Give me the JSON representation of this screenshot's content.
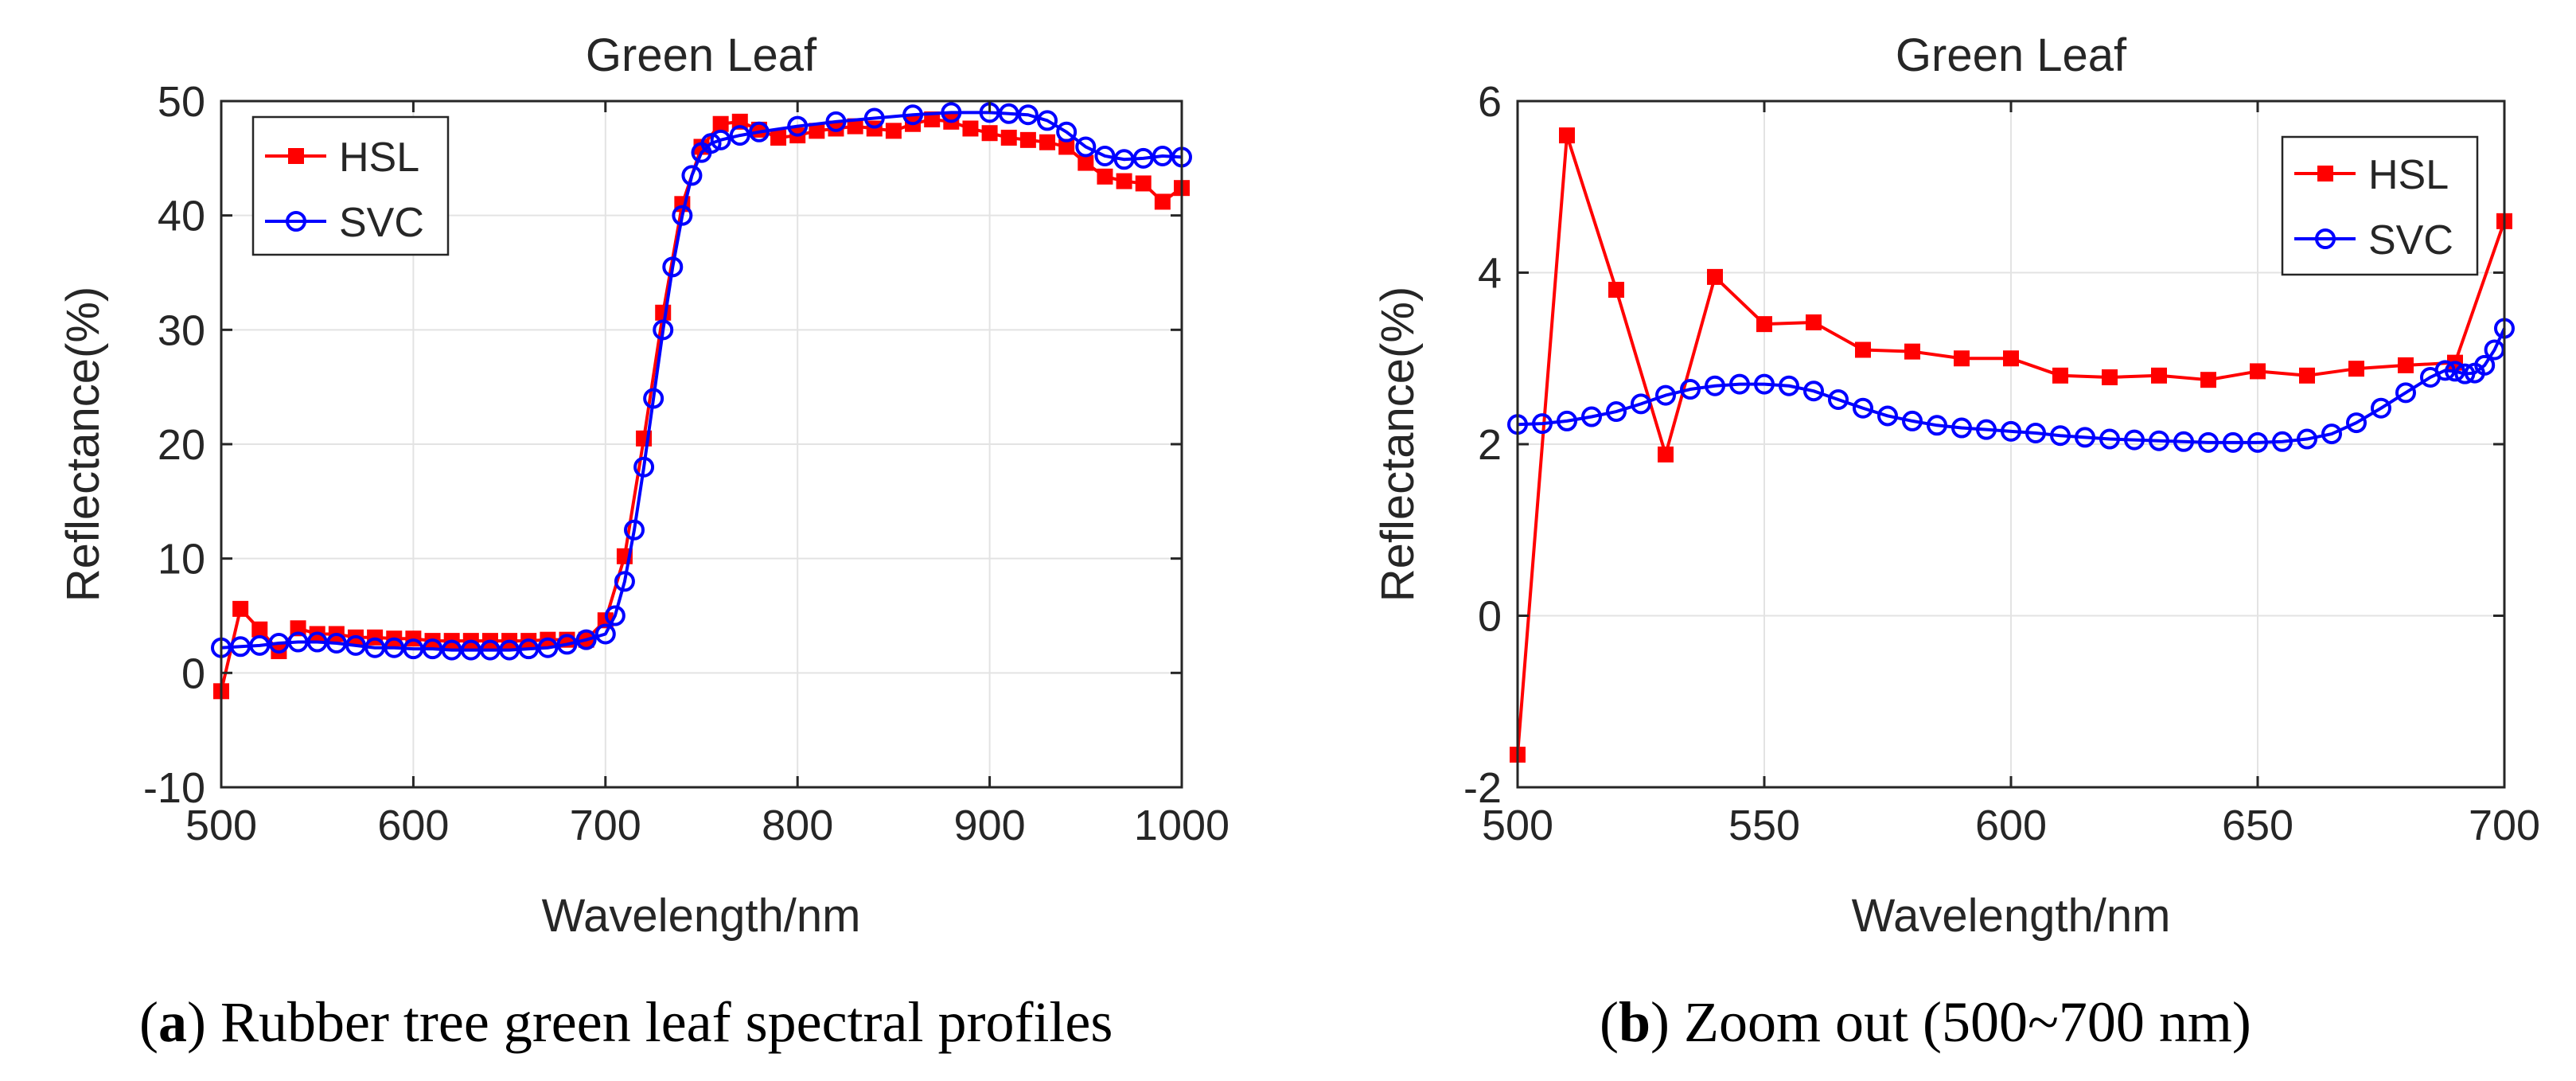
{
  "figure": {
    "caption_a": {
      "label": "a",
      "text": ") Rubber tree green leaf spectral profiles"
    },
    "caption_b": {
      "label": "b",
      "text": ") Zoom out (500~700 nm)"
    }
  },
  "colors": {
    "hsl": "#ff0000",
    "svc": "#0000ff",
    "grid": "#e3e3e3",
    "axis": "#262626"
  },
  "chart_data": [
    {
      "type": "line",
      "title": "Green Leaf",
      "xlabel": "Wavelength/nm",
      "ylabel": "Reflectance(%)",
      "xlim": [
        500,
        1000
      ],
      "ylim": [
        -10,
        50
      ],
      "xticks": [
        500,
        600,
        700,
        800,
        900,
        1000
      ],
      "yticks": [
        -10,
        0,
        10,
        20,
        30,
        40,
        50
      ],
      "grid": true,
      "legend": {
        "position": "top-left",
        "entries": [
          "HSL",
          "SVC"
        ]
      },
      "series": [
        {
          "name": "HSL",
          "marker": "square",
          "x": [
            500,
            510,
            520,
            530,
            540,
            550,
            560,
            570,
            580,
            590,
            600,
            610,
            620,
            630,
            640,
            650,
            660,
            670,
            680,
            690,
            700,
            710,
            720,
            730,
            740,
            750,
            760,
            770,
            780,
            790,
            800,
            810,
            820,
            830,
            840,
            850,
            860,
            870,
            880,
            890,
            900,
            910,
            920,
            930,
            940,
            950,
            960,
            970,
            980,
            990,
            1000
          ],
          "y": [
            -1.6,
            5.6,
            3.8,
            1.9,
            3.9,
            3.4,
            3.4,
            3.1,
            3.1,
            3.0,
            3.0,
            2.8,
            2.8,
            2.8,
            2.8,
            2.8,
            2.8,
            2.9,
            2.9,
            2.9,
            4.6,
            10.2,
            20.5,
            31.5,
            41.0,
            46.0,
            48.0,
            48.2,
            47.5,
            46.8,
            47.0,
            47.4,
            47.6,
            47.8,
            47.6,
            47.4,
            48.0,
            48.4,
            48.2,
            47.6,
            47.2,
            46.8,
            46.6,
            46.4,
            46.0,
            44.6,
            43.4,
            43.0,
            42.8,
            41.2,
            42.4
          ]
        },
        {
          "name": "SVC",
          "marker": "circle",
          "x": [
            500,
            510,
            520,
            530,
            540,
            550,
            560,
            570,
            580,
            590,
            600,
            610,
            620,
            630,
            640,
            650,
            660,
            670,
            680,
            690,
            700,
            705,
            710,
            715,
            720,
            725,
            730,
            735,
            740,
            745,
            750,
            755,
            760,
            770,
            780,
            800,
            820,
            840,
            860,
            880,
            900,
            910,
            920,
            930,
            940,
            950,
            960,
            970,
            980,
            990,
            1000
          ],
          "y": [
            2.2,
            2.3,
            2.4,
            2.6,
            2.7,
            2.7,
            2.6,
            2.4,
            2.2,
            2.2,
            2.1,
            2.1,
            2.0,
            2.0,
            2.0,
            2.0,
            2.1,
            2.2,
            2.5,
            2.9,
            3.4,
            5.0,
            8.0,
            12.5,
            18.0,
            24.0,
            30.0,
            35.5,
            40.0,
            43.5,
            45.5,
            46.3,
            46.6,
            47.0,
            47.3,
            47.8,
            48.2,
            48.5,
            48.8,
            49.0,
            49.0,
            48.9,
            48.8,
            48.3,
            47.3,
            46.0,
            45.2,
            44.9,
            45.0,
            45.2,
            45.1
          ]
        }
      ]
    },
    {
      "type": "line",
      "title": "Green Leaf",
      "xlabel": "Wavelength/nm",
      "ylabel": "Reflectance(%)",
      "xlim": [
        500,
        700
      ],
      "ylim": [
        -2,
        6
      ],
      "xticks": [
        500,
        550,
        600,
        650,
        700
      ],
      "yticks": [
        -2,
        0,
        2,
        4,
        6
      ],
      "grid": true,
      "legend": {
        "position": "top-right",
        "entries": [
          "HSL",
          "SVC"
        ]
      },
      "series": [
        {
          "name": "HSL",
          "marker": "square",
          "x": [
            500,
            510,
            520,
            530,
            540,
            550,
            560,
            570,
            580,
            590,
            600,
            610,
            620,
            630,
            640,
            650,
            660,
            670,
            680,
            690,
            700
          ],
          "y": [
            -1.62,
            5.6,
            3.8,
            1.88,
            3.95,
            3.4,
            3.42,
            3.1,
            3.08,
            3.0,
            3.0,
            2.8,
            2.78,
            2.8,
            2.75,
            2.85,
            2.8,
            2.88,
            2.92,
            2.95,
            4.6
          ]
        },
        {
          "name": "SVC",
          "marker": "circle",
          "x": [
            500,
            505,
            510,
            515,
            520,
            525,
            530,
            535,
            540,
            545,
            550,
            555,
            560,
            565,
            570,
            575,
            580,
            585,
            590,
            595,
            600,
            605,
            610,
            615,
            620,
            625,
            630,
            635,
            640,
            645,
            650,
            655,
            660,
            665,
            670,
            675,
            680,
            685,
            688,
            690,
            692,
            694,
            696,
            698,
            700
          ],
          "y": [
            2.23,
            2.24,
            2.27,
            2.32,
            2.38,
            2.47,
            2.57,
            2.64,
            2.68,
            2.7,
            2.7,
            2.68,
            2.62,
            2.52,
            2.42,
            2.33,
            2.27,
            2.22,
            2.19,
            2.17,
            2.15,
            2.13,
            2.1,
            2.08,
            2.06,
            2.05,
            2.04,
            2.03,
            2.02,
            2.02,
            2.02,
            2.03,
            2.06,
            2.12,
            2.25,
            2.42,
            2.6,
            2.78,
            2.86,
            2.85,
            2.82,
            2.83,
            2.92,
            3.1,
            3.35
          ]
        }
      ]
    }
  ]
}
